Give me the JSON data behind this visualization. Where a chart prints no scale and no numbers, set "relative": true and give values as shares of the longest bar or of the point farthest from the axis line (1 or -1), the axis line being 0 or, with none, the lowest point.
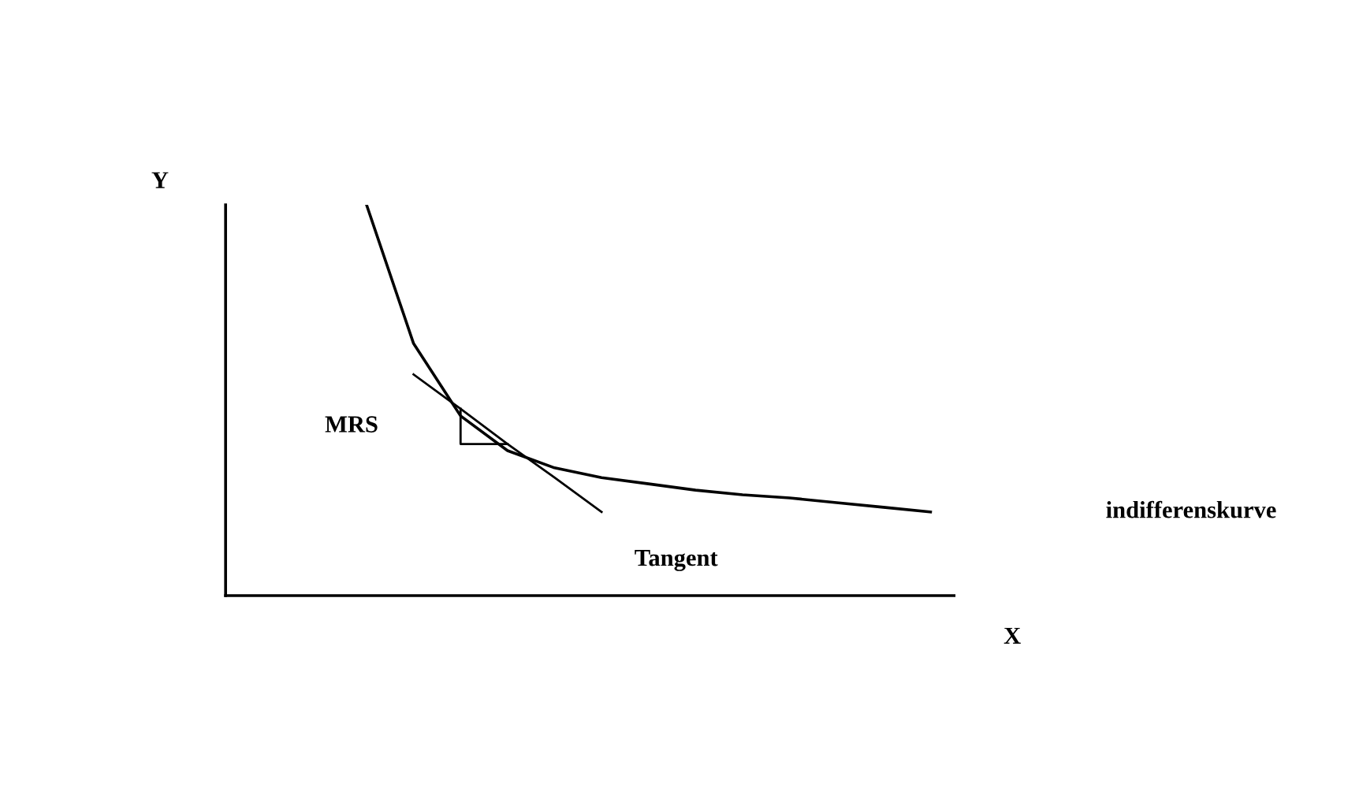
{
  "chart_data": {
    "type": "line",
    "relative": true,
    "xlabel": "X",
    "ylabel": "Y",
    "tick_labels": false,
    "marker": "none",
    "line_style": "solid",
    "annotations": [
      "MRS"
    ],
    "categories": [
      null,
      null,
      null,
      null,
      null,
      null,
      null,
      null,
      null,
      null,
      null,
      null,
      null,
      null,
      null,
      null
    ],
    "series": [
      {
        "name": "indifferenskurve",
        "color": "#000000",
        "values": [
          null,
          null,
          null,
          1.0,
          0.645,
          0.46,
          0.371,
          0.327,
          0.302,
          0.286,
          0.27,
          0.258,
          0.25,
          0.238,
          0.226,
          0.214
        ]
      },
      {
        "name": "Tangent",
        "color": "#000000",
        "values": [
          null,
          null,
          null,
          null,
          0.566,
          0.478,
          0.388,
          0.302,
          0.214,
          null,
          null,
          null,
          null,
          null,
          null,
          null
        ]
      }
    ]
  }
}
